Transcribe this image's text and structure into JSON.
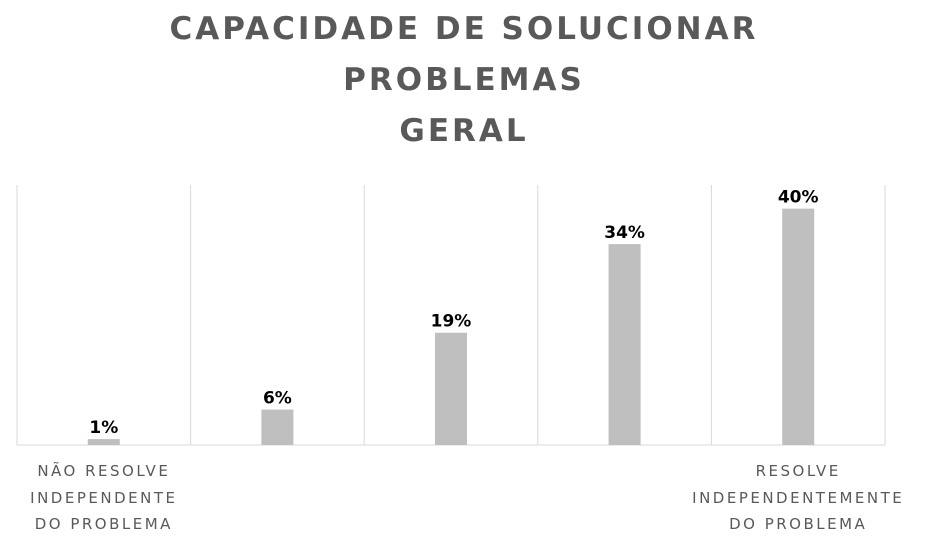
{
  "chart_data": {
    "type": "bar",
    "title": "CAPACIDADE DE SOLUCIONAR\nPROBLEMAS\nGERAL",
    "categories": [
      "NÃO RESOLVE\nINDEPENDENTE\nDO PROBLEMA",
      null,
      null,
      null,
      "RESOLVE\nINDEPENDENTEMENTE\nDO PROBLEMA"
    ],
    "values": [
      1,
      6,
      19,
      34,
      40
    ],
    "value_labels": [
      "1%",
      "6%",
      "19%",
      "34%",
      "40%"
    ],
    "color": "#bfbfbf",
    "ylim": [
      0,
      44
    ],
    "grid": true
  }
}
